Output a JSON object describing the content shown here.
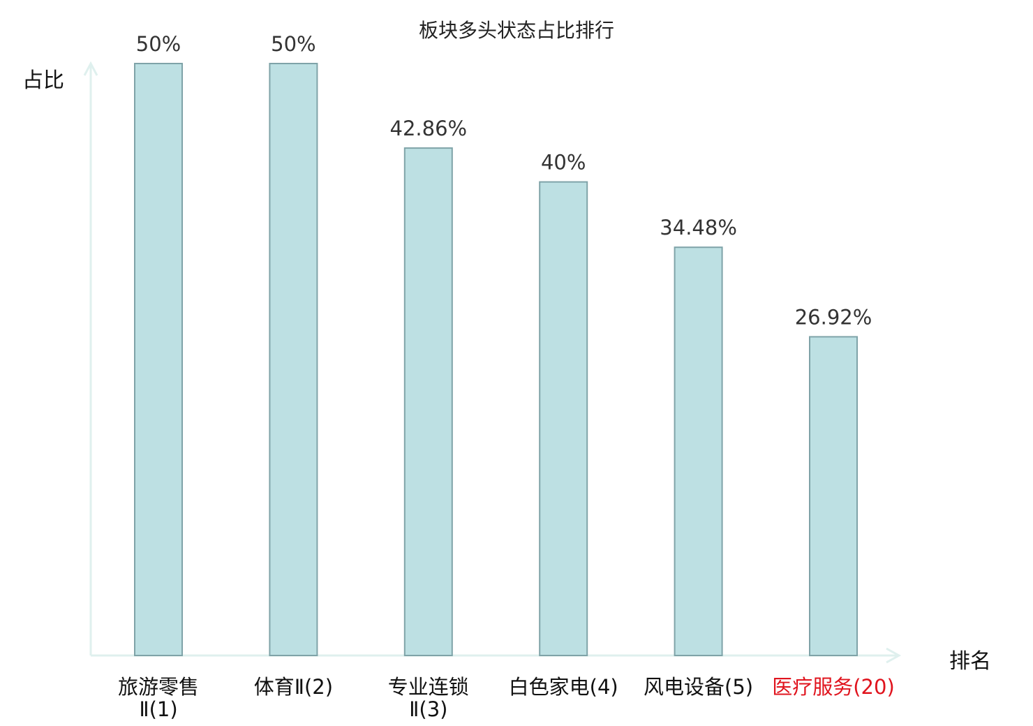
{
  "chart_data": {
    "type": "bar",
    "title": "板块多头状态占比排行",
    "ylabel": "占比",
    "xlabel": "排名",
    "categories": [
      [
        "旅游零售",
        "Ⅱ(1)"
      ],
      [
        "体育Ⅱ(2)"
      ],
      [
        "专业连锁",
        "Ⅱ(3)"
      ],
      [
        "白色家电(4)"
      ],
      [
        "风电设备(5)"
      ],
      [
        "医疗服务(20)"
      ]
    ],
    "values": [
      50,
      50,
      42.86,
      40,
      34.48,
      26.92
    ],
    "value_labels": [
      "50%",
      "50%",
      "42.86%",
      "40%",
      "34.48%",
      "26.92%"
    ],
    "highlight_index": 5,
    "ylim": [
      0,
      50
    ],
    "grid": false,
    "colors": {
      "bar_fill": "#bde0e3",
      "bar_stroke": "#7fa3a8",
      "axis": "#dff0ee",
      "highlight_text": "#e0141e",
      "label_text": "#333333"
    }
  }
}
